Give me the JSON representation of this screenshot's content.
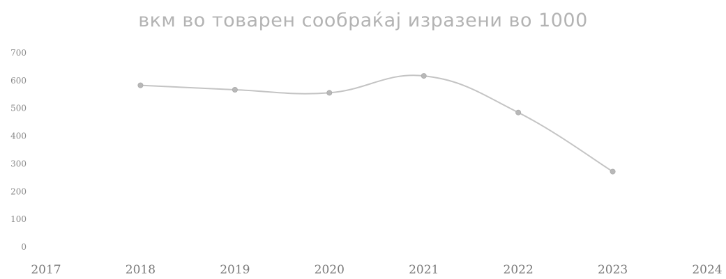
{
  "chart_data": {
    "type": "line",
    "title": "вкм во товарен сообраќај изразени во 1000",
    "xlabel": "",
    "ylabel": "",
    "x_ticks": [
      "2017",
      "2018",
      "2019",
      "2020",
      "2021",
      "2022",
      "2023",
      "2024"
    ],
    "y_ticks": [
      "700",
      "600",
      "500",
      "400",
      "300",
      "200",
      "100",
      "0"
    ],
    "xlim": [
      2017,
      2024
    ],
    "ylim": [
      0,
      700
    ],
    "grid": false,
    "legend": "none",
    "series": [
      {
        "x": [
          2018,
          2019,
          2020,
          2021,
          2022,
          2023
        ],
        "values": [
          583,
          567,
          556,
          617,
          485,
          272
        ],
        "color": "#c4c4c4",
        "marker_color": "#b8b8b8"
      }
    ]
  }
}
